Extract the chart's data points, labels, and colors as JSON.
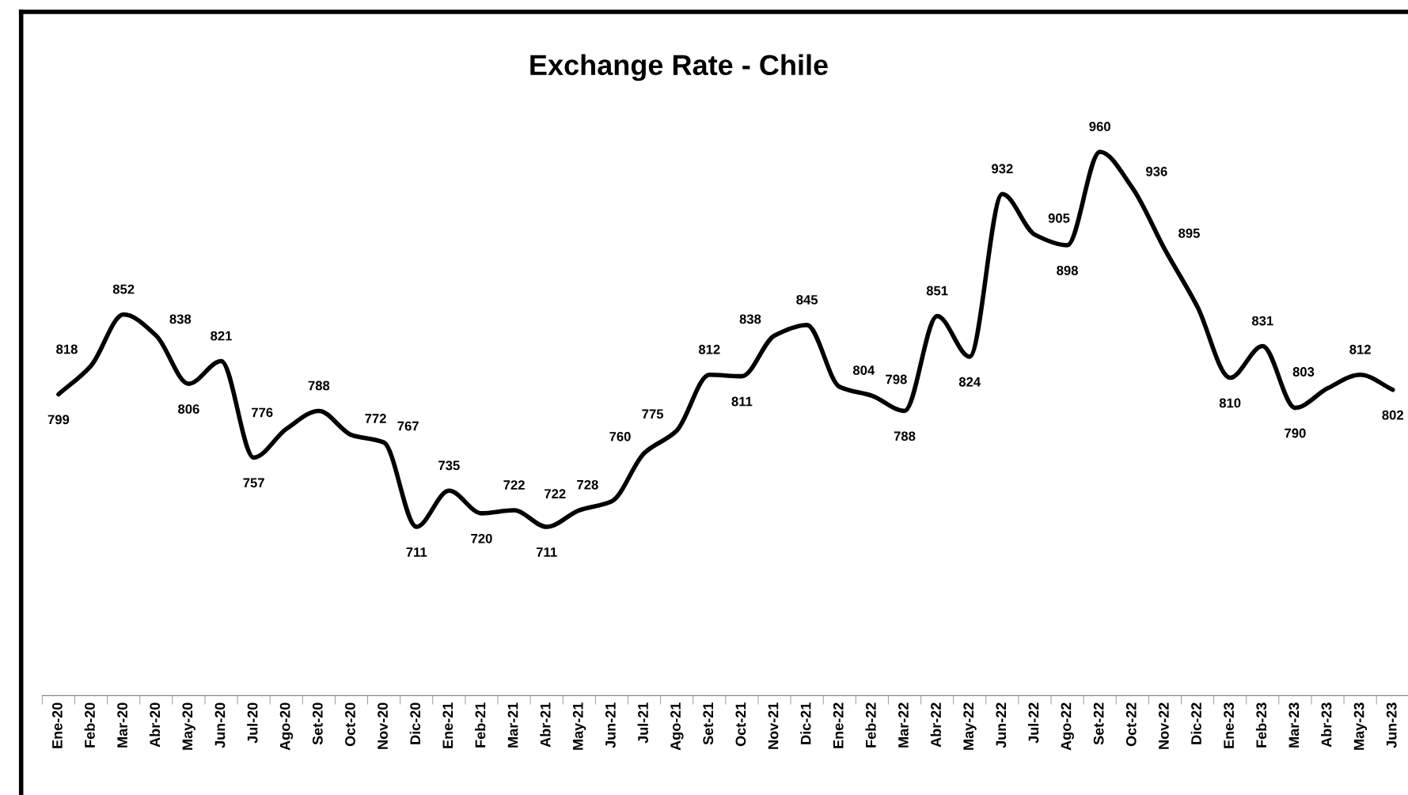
{
  "chart_data": {
    "type": "line",
    "title": "Exchange Rate - Chile",
    "categories": [
      "Ene-20",
      "Feb-20",
      "Mar-20",
      "Abr-20",
      "May-20",
      "Jun-20",
      "Jul-20",
      "Ago-20",
      "Set-20",
      "Oct-20",
      "Nov-20",
      "Dic-20",
      "Ene-21",
      "Feb-21",
      "Mar-21",
      "Abr-21",
      "May-21",
      "Jun-21",
      "Jul-21",
      "Ago-21",
      "Set-21",
      "Oct-21",
      "Nov-21",
      "Dic-21",
      "Ene-22",
      "Feb-22",
      "Mar-22",
      "Abr-22",
      "May-22",
      "Jun-22",
      "Jul-22",
      "Ago-22",
      "Set-22",
      "Oct-22",
      "Nov-22",
      "Dic-22",
      "Ene-23",
      "Feb-23",
      "Mar-23",
      "Abr-23",
      "May-23",
      "Jun-23"
    ],
    "series": [
      {
        "color": "#000000",
        "values": [
          799,
          818,
          852,
          838,
          806,
          821,
          757,
          776,
          788,
          772,
          767,
          711,
          735,
          720,
          722,
          711,
          722,
          728,
          760,
          775,
          812,
          811,
          838,
          845,
          804,
          798,
          788,
          851,
          824,
          932,
          905,
          898,
          960,
          936,
          895,
          857,
          810,
          831,
          790,
          803,
          812,
          802
        ],
        "value_labels": [
          "799",
          "818",
          "852",
          "838",
          "806",
          "821",
          "757",
          "776",
          "788",
          "772",
          "767",
          "711",
          "735",
          "720",
          "722",
          "711",
          "722",
          "728",
          "760",
          "775",
          "812",
          "811",
          "838",
          "845",
          "804",
          "798",
          "788",
          "851",
          "824",
          "932",
          "905",
          "898",
          "960",
          "936",
          "895",
          null,
          "810",
          "831",
          "790",
          "803",
          "812",
          "802"
        ]
      }
    ],
    "grid": false,
    "marker": "none",
    "line_style": "solid"
  }
}
